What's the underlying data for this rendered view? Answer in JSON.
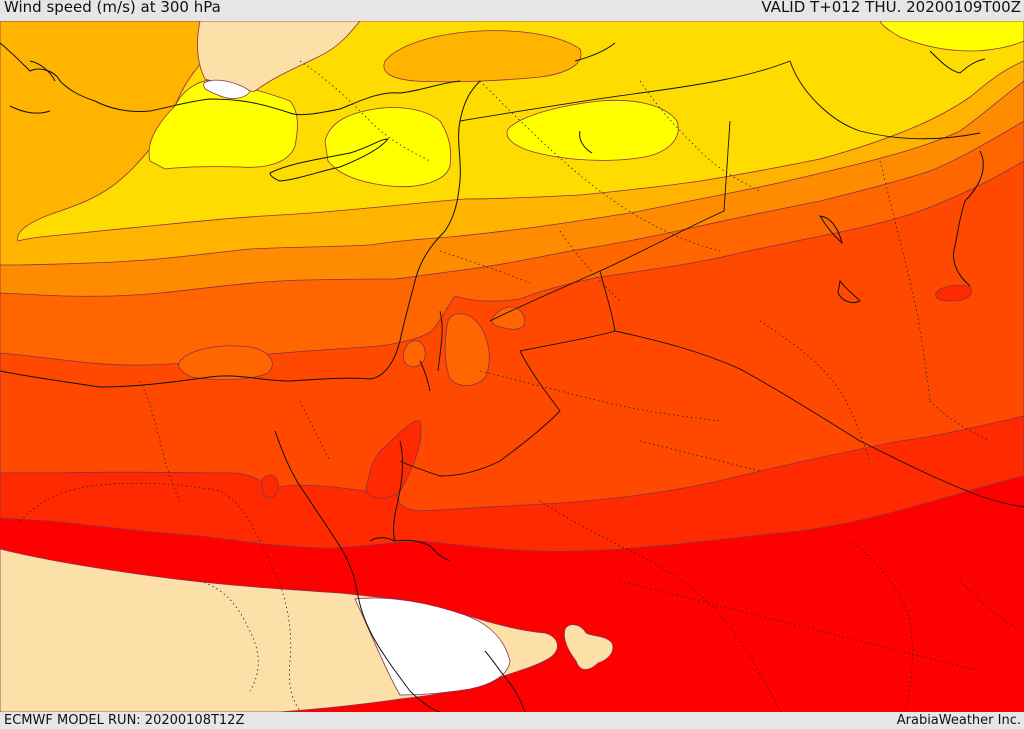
{
  "header": {
    "title": "Wind speed (m/s) at 300 hPa",
    "valid": "VALID T+012 THU. 20200109T00Z"
  },
  "footer": {
    "model_run": "ECMWF MODEL RUN: 20200108T12Z",
    "credit": "ArabiaWeather Inc."
  },
  "colors": {
    "white": "#ffffff",
    "pale_wheat": "#fddfa8",
    "yellow": "#ffff00",
    "gold": "#ffdc00",
    "amber": "#ffb400",
    "orange": "#ff8c00",
    "dark_orange": "#ff6600",
    "orange_red": "#ff4800",
    "red_orange": "#ff2a00",
    "red": "#ff0000"
  }
}
